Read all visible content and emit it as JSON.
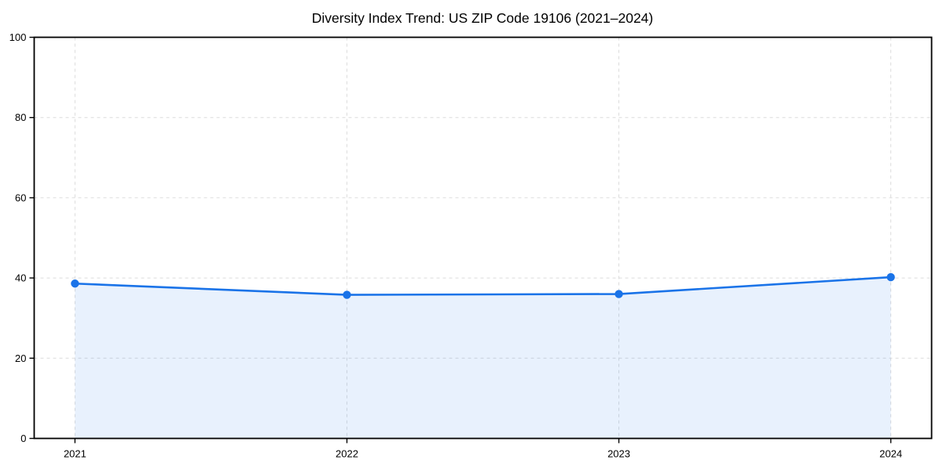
{
  "page": {
    "background": "#ffffff"
  },
  "chart_data": {
    "type": "area",
    "title": "Diversity Index Trend: US ZIP Code 19106 (2021–2024)",
    "x": [
      2021,
      2022,
      2023,
      2024
    ],
    "values": [
      38.6,
      35.8,
      36.0,
      40.2
    ],
    "xlabel": "",
    "ylabel": "",
    "xlim": [
      2020.85,
      2024.15
    ],
    "ylim": [
      0,
      100
    ],
    "xticks": [
      2021,
      2022,
      2023,
      2024
    ],
    "yticks": [
      0,
      20,
      40,
      60,
      80,
      100
    ],
    "grid": "dashed",
    "legend": "none",
    "colors": {
      "line": "#1a73e8",
      "marker": "#1a73e8",
      "fill": "#1a73e8",
      "fill_opacity": 0.1,
      "grid": "#dcdcdc",
      "axis": "#000000",
      "text": "#000000"
    }
  }
}
